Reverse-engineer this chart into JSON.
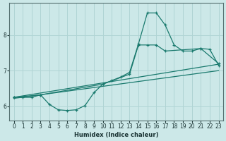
{
  "xlabel": "Humidex (Indice chaleur)",
  "ylabel": "",
  "xlim": [
    -0.5,
    23.5
  ],
  "ylim": [
    5.6,
    8.9
  ],
  "bg_color": "#cce8e8",
  "grid_color": "#b0d4d4",
  "line_color": "#1a7a6e",
  "xticks": [
    0,
    1,
    2,
    3,
    4,
    5,
    6,
    7,
    8,
    9,
    10,
    11,
    12,
    13,
    14,
    15,
    16,
    17,
    18,
    19,
    20,
    21,
    22,
    23
  ],
  "yticks": [
    6,
    7,
    8
  ],
  "series": [
    {
      "x": [
        0,
        1,
        2,
        3,
        4,
        5,
        6,
        7,
        8,
        9,
        10,
        11,
        12,
        13,
        14,
        15,
        16,
        17,
        18,
        19,
        20,
        21,
        22,
        23
      ],
      "y": [
        6.25,
        6.25,
        6.25,
        6.32,
        6.05,
        5.9,
        5.88,
        5.9,
        6.02,
        6.38,
        6.62,
        6.72,
        6.82,
        6.95,
        7.75,
        8.62,
        8.62,
        8.28,
        7.72,
        7.55,
        7.55,
        7.62,
        7.6,
        7.15
      ]
    },
    {
      "x": [
        0,
        3,
        10,
        13,
        14,
        15,
        16,
        17,
        21,
        23
      ],
      "y": [
        6.25,
        6.32,
        6.62,
        6.9,
        7.72,
        7.72,
        7.72,
        7.55,
        7.62,
        7.2
      ]
    },
    {
      "x": [
        0,
        23
      ],
      "y": [
        6.25,
        7.18
      ]
    },
    {
      "x": [
        0,
        23
      ],
      "y": [
        6.22,
        7.0
      ]
    }
  ]
}
